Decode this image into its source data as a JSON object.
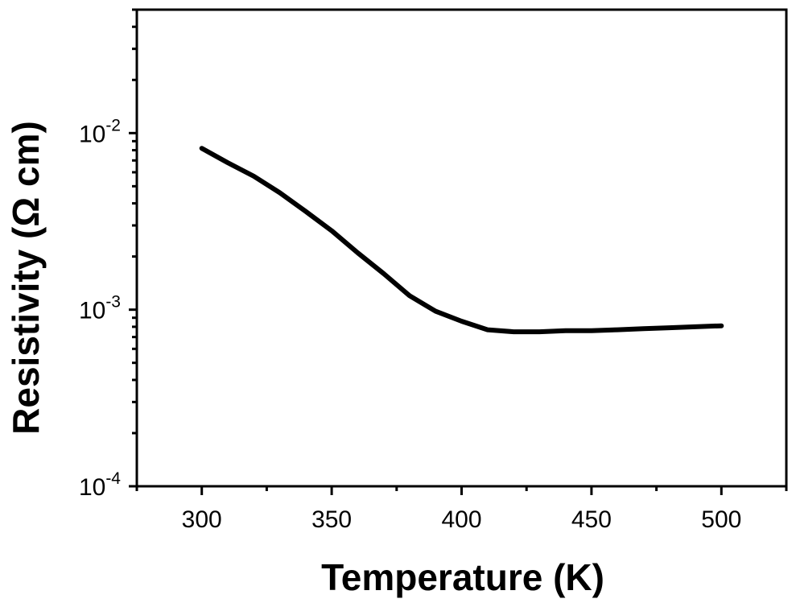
{
  "chart_data": {
    "type": "line",
    "title": "",
    "xlabel": "Temperature (K)",
    "ylabel": "Resistivity (Ω cm)",
    "xlim": [
      275,
      525
    ],
    "ylim": [
      0.0001,
      0.05
    ],
    "yscale": "log",
    "grid": false,
    "legend": "none",
    "line_color": "#000000",
    "x_ticks": [
      {
        "value": 300,
        "label": "300"
      },
      {
        "value": 350,
        "label": "350"
      },
      {
        "value": 400,
        "label": "400"
      },
      {
        "value": 450,
        "label": "450"
      },
      {
        "value": 500,
        "label": "500"
      }
    ],
    "y_ticks": [
      {
        "value": 0.0001,
        "base": "10",
        "exp": "-4"
      },
      {
        "value": 0.001,
        "base": "10",
        "exp": "-3"
      },
      {
        "value": 0.01,
        "base": "10",
        "exp": "-2"
      }
    ],
    "series": [
      {
        "x": [
          300,
          310,
          320,
          330,
          340,
          350,
          360,
          370,
          380,
          390,
          400,
          410,
          420,
          430,
          440,
          450,
          460,
          470,
          480,
          490,
          500
        ],
        "y": [
          0.0082,
          0.0068,
          0.0057,
          0.0046,
          0.0036,
          0.0028,
          0.0021,
          0.0016,
          0.0012,
          0.00098,
          0.00086,
          0.00077,
          0.00075,
          0.00075,
          0.00076,
          0.00076,
          0.00077,
          0.00078,
          0.00079,
          0.0008,
          0.00081
        ]
      }
    ]
  }
}
